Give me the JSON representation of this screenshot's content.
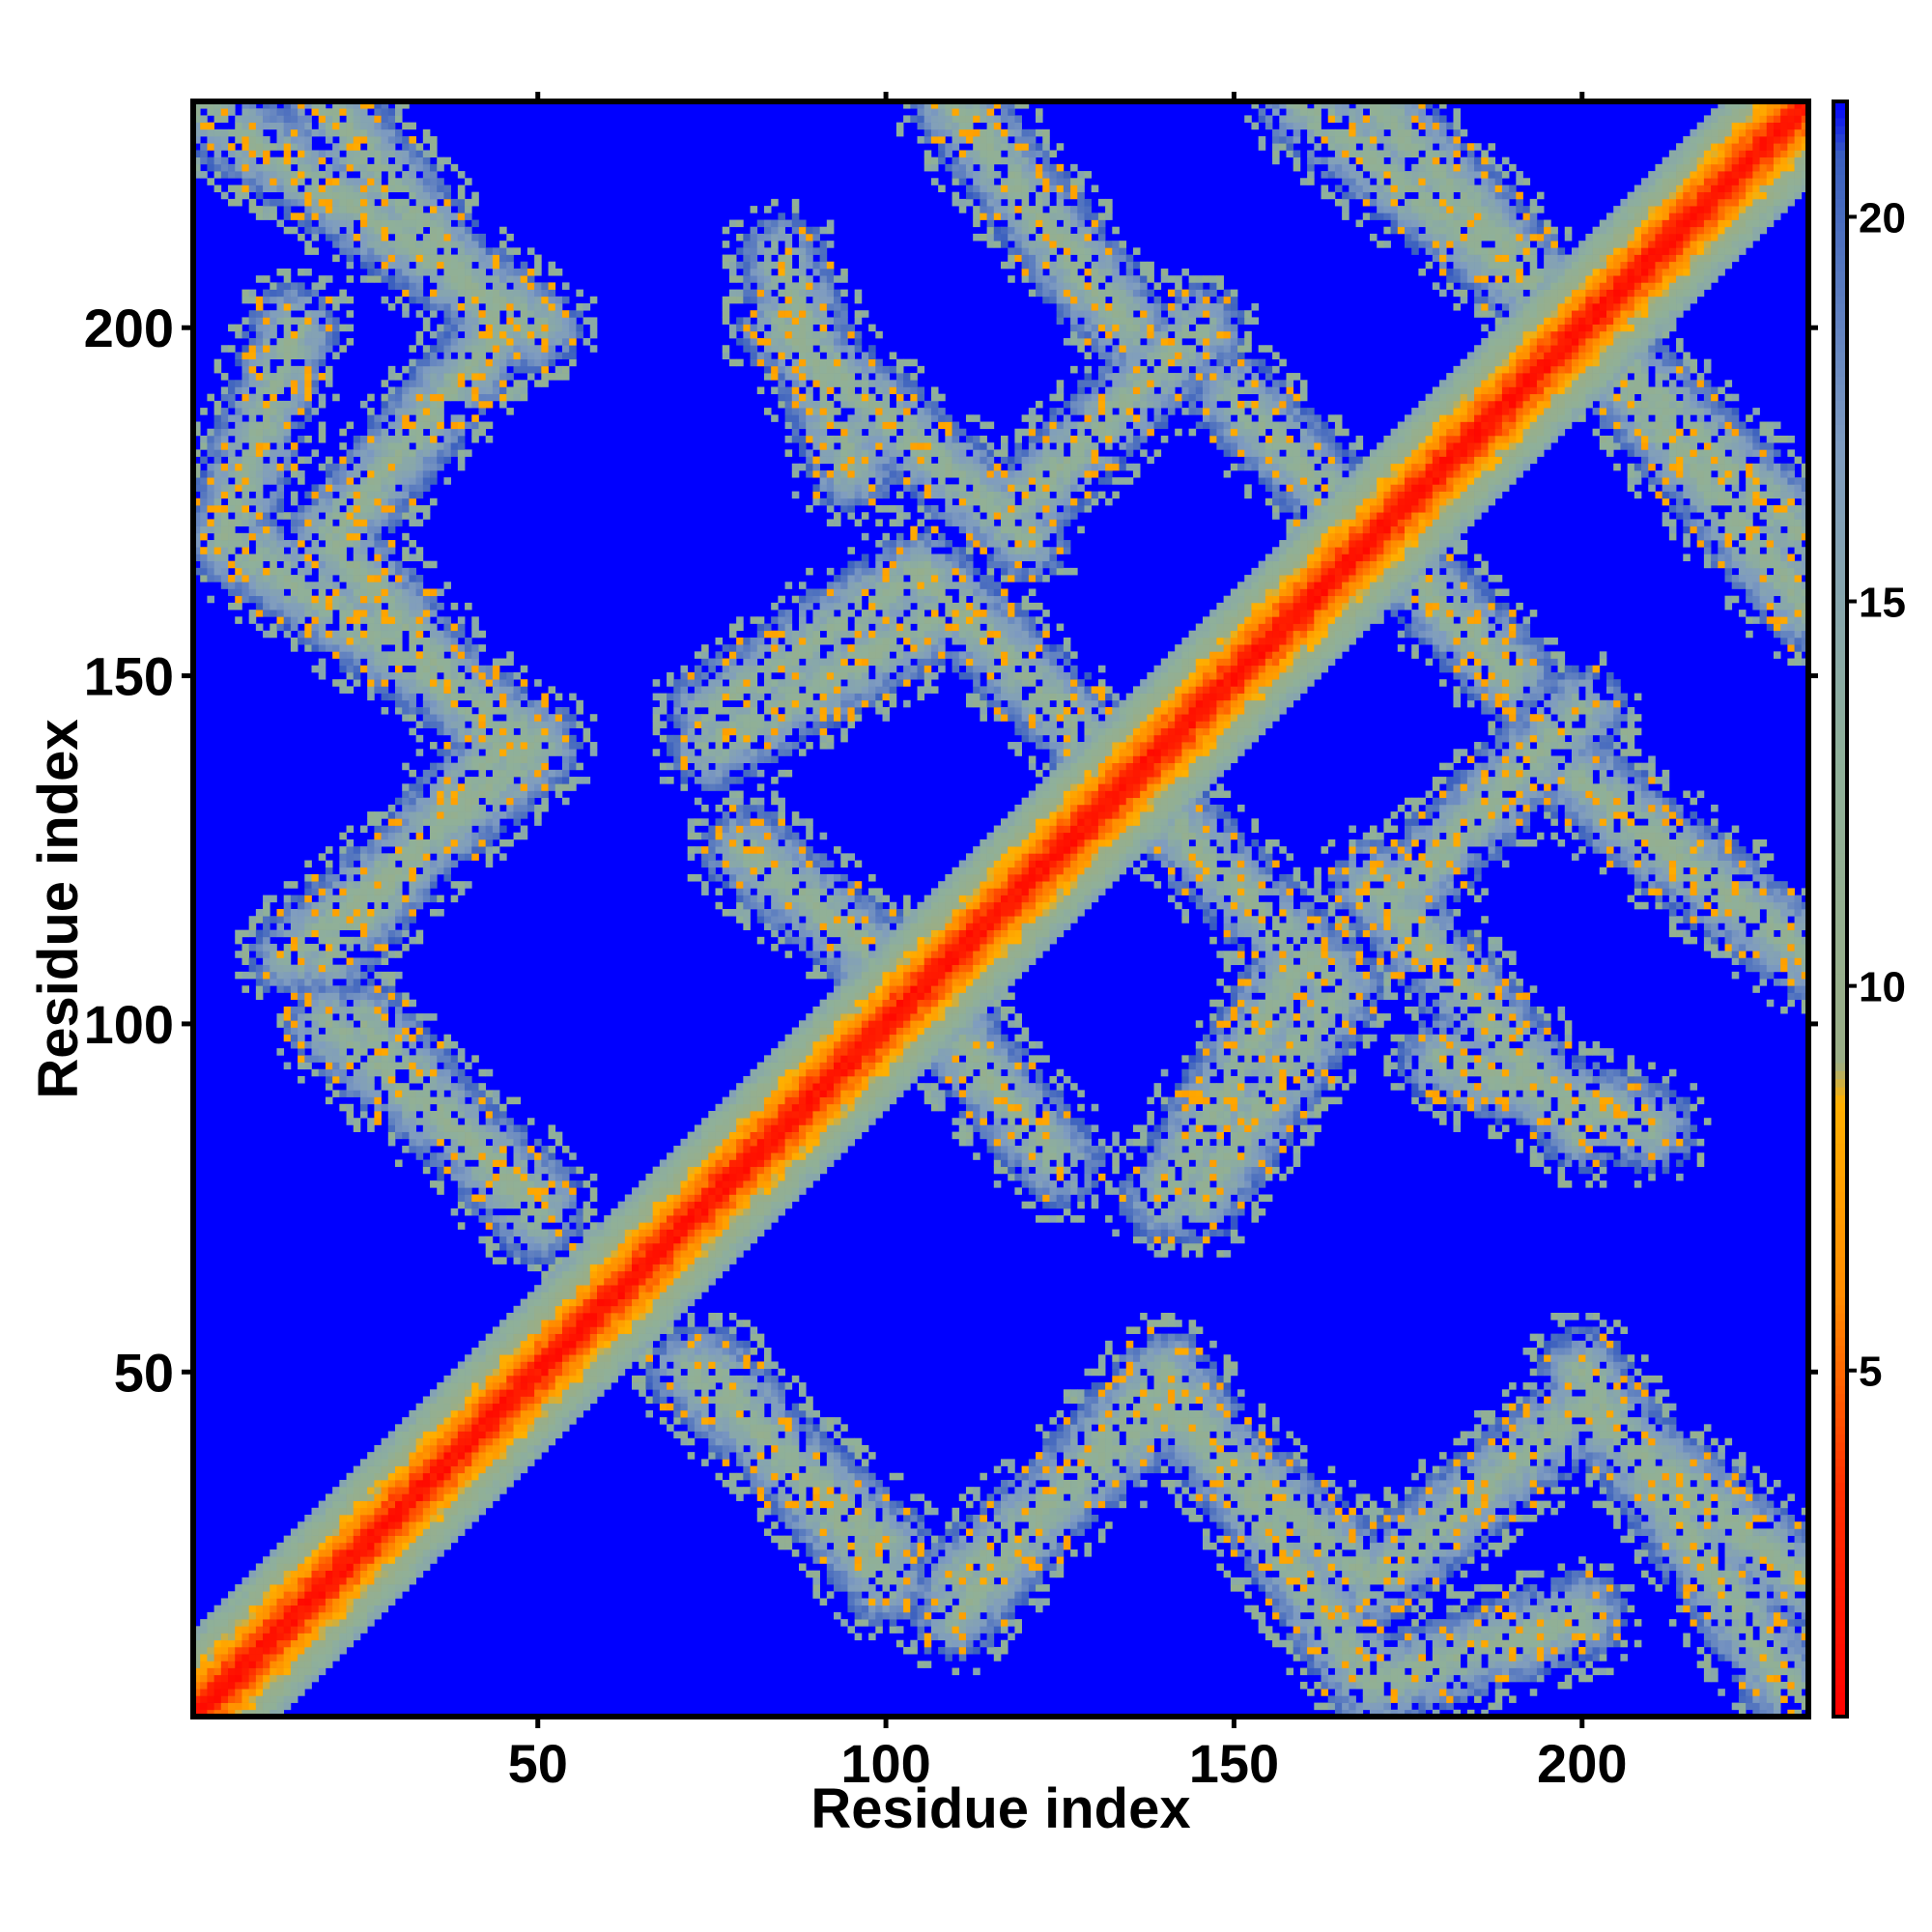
{
  "chart_data": {
    "type": "heatmap",
    "title": "",
    "xlabel": "Residue index",
    "ylabel": "Residue index",
    "n_residues": 232,
    "xlim": [
      1,
      232
    ],
    "ylim": [
      1,
      232
    ],
    "x_ticks": [
      50,
      100,
      150,
      200
    ],
    "y_ticks": [
      50,
      100,
      150,
      200
    ],
    "value_description": "pairwise residue distance (Å)",
    "colorbar": {
      "range": [
        0.5,
        21.5
      ],
      "ticks": [
        5,
        10,
        15,
        20
      ],
      "palette": [
        {
          "value": 0.5,
          "color": "#ff0000"
        },
        {
          "value": 3.5,
          "color": "#ff3000"
        },
        {
          "value": 6.0,
          "color": "#ff8c00"
        },
        {
          "value": 8.5,
          "color": "#ffb000"
        },
        {
          "value": 9.0,
          "color": "#9aae86"
        },
        {
          "value": 13.0,
          "color": "#8fb09a"
        },
        {
          "value": 17.0,
          "color": "#7f9cc0"
        },
        {
          "value": 20.8,
          "color": "#3a5fbf"
        },
        {
          "value": 21.5,
          "color": "#0000ff"
        }
      ]
    },
    "background_value": 21,
    "background_color": "#0000ff",
    "structure": {
      "diagonal_band_halfwidth": 12,
      "contact_segments": [
        {
          "from": [
            1,
            232
          ],
          "to": [
            50,
            200
          ]
        },
        {
          "from": [
            15,
            200
          ],
          "to": [
            5,
            170
          ]
        },
        {
          "from": [
            5,
            170
          ],
          "to": [
            50,
            140
          ]
        },
        {
          "from": [
            50,
            140
          ],
          "to": [
            15,
            110
          ]
        },
        {
          "from": [
            20,
            100
          ],
          "to": [
            50,
            75
          ]
        },
        {
          "from": [
            75,
            140
          ],
          "to": [
            110,
            160
          ]
        },
        {
          "from": [
            110,
            160
          ],
          "to": [
            140,
            130
          ]
        },
        {
          "from": [
            140,
            130
          ],
          "to": [
            165,
            105
          ]
        },
        {
          "from": [
            165,
            105
          ],
          "to": [
            145,
            75
          ]
        },
        {
          "from": [
            110,
            232
          ],
          "to": [
            135,
            200
          ]
        },
        {
          "from": [
            160,
            232
          ],
          "to": [
            200,
            200
          ]
        },
        {
          "from": [
            200,
            200
          ],
          "to": [
            232,
            170
          ]
        },
        {
          "from": [
            205,
            130
          ],
          "to": [
            232,
            110
          ]
        },
        {
          "from": [
            85,
            200
          ],
          "to": [
            120,
            170
          ]
        },
        {
          "from": [
            150,
            190
          ],
          "to": [
            180,
            160
          ]
        },
        {
          "from": [
            175,
            120
          ],
          "to": [
            200,
            145
          ]
        },
        {
          "from": [
            72,
            50
          ],
          "to": [
            100,
            25
          ]
        },
        {
          "from": [
            110,
            20
          ],
          "to": [
            140,
            45
          ]
        },
        {
          "from": [
            140,
            45
          ],
          "to": [
            170,
            20
          ]
        },
        {
          "from": [
            170,
            20
          ],
          "to": [
            200,
            45
          ]
        },
        {
          "from": [
            200,
            45
          ],
          "to": [
            232,
            20
          ]
        },
        {
          "from": [
            180,
            95
          ],
          "to": [
            210,
            85
          ]
        },
        {
          "from": [
            100,
            110
          ],
          "to": [
            125,
            80
          ]
        }
      ]
    }
  }
}
